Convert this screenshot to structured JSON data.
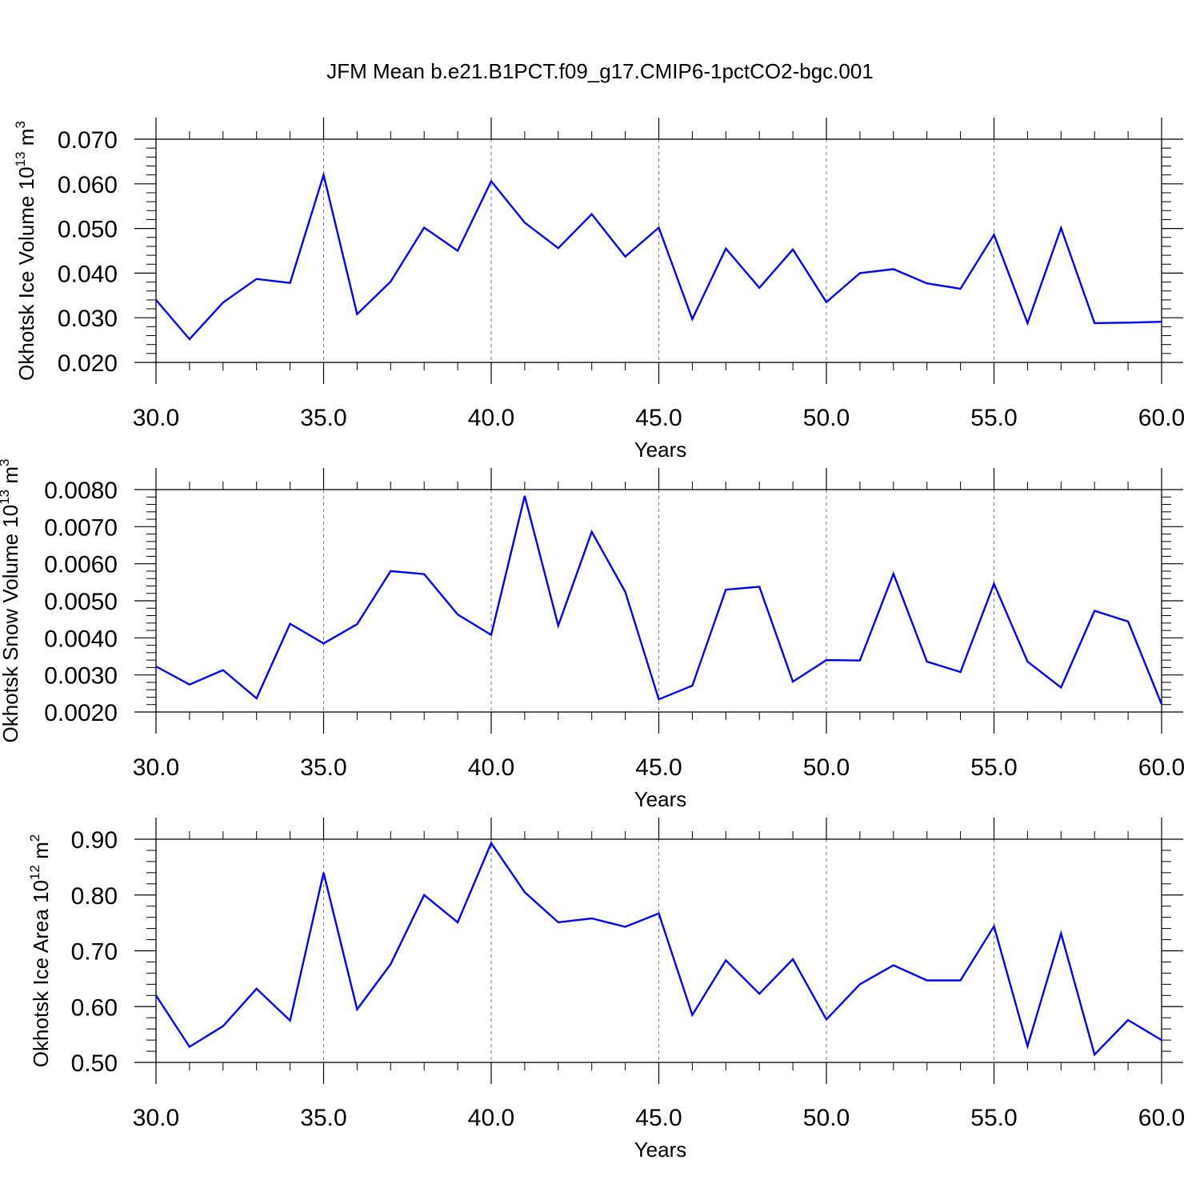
{
  "title": "JFM Mean b.e21.B1PCT.f09_g17.CMIP6-1pctCO2-bgc.001",
  "line_color": "#0000ff",
  "chart_data": [
    {
      "type": "line",
      "ylabel": "Okhotsk Ice Volume 10",
      "ylabel_sup": "13",
      "ylabel_unit": "m",
      "ylabel_unit_sup": "3",
      "xlabel": "Years",
      "xlim": [
        30,
        60
      ],
      "ylim": [
        0.02,
        0.07
      ],
      "xticks": [
        "30.0",
        "35.0",
        "40.0",
        "45.0",
        "50.0",
        "55.0",
        "60.0"
      ],
      "yticks": [
        "0.020",
        "0.030",
        "0.040",
        "0.050",
        "0.060",
        "0.070"
      ],
      "x": [
        30,
        31,
        32,
        33,
        34,
        35,
        36,
        37,
        38,
        39,
        40,
        41,
        42,
        43,
        44,
        45,
        46,
        47,
        48,
        49,
        50,
        51,
        52,
        53,
        54,
        55,
        56,
        57,
        58,
        59,
        60
      ],
      "series": [
        {
          "values": [
            0.034,
            0.0252,
            0.0334,
            0.0387,
            0.0378,
            0.062,
            0.0308,
            0.0381,
            0.0502,
            0.045,
            0.0606,
            0.0513,
            0.0456,
            0.0532,
            0.0437,
            0.0502,
            0.0297,
            0.0455,
            0.0367,
            0.0453,
            0.0335,
            0.04,
            0.0409,
            0.0377,
            0.0365,
            0.0486,
            0.0288,
            0.0501,
            0.0288,
            0.0289,
            0.0291
          ]
        }
      ]
    },
    {
      "type": "line",
      "ylabel": "Okhotsk Snow Volume 10",
      "ylabel_sup": "13",
      "ylabel_unit": "m",
      "ylabel_unit_sup": "3",
      "xlabel": "Years",
      "xlim": [
        30,
        60
      ],
      "ylim": [
        0.002,
        0.008
      ],
      "xticks": [
        "30.0",
        "35.0",
        "40.0",
        "45.0",
        "50.0",
        "55.0",
        "60.0"
      ],
      "yticks": [
        "0.0020",
        "0.0030",
        "0.0040",
        "0.0050",
        "0.0060",
        "0.0070",
        "0.0080"
      ],
      "x": [
        30,
        31,
        32,
        33,
        34,
        35,
        36,
        37,
        38,
        39,
        40,
        41,
        42,
        43,
        44,
        45,
        46,
        47,
        48,
        49,
        50,
        51,
        52,
        53,
        54,
        55,
        56,
        57,
        58,
        59,
        60
      ],
      "series": [
        {
          "values": [
            0.00323,
            0.00274,
            0.00313,
            0.00237,
            0.00438,
            0.00385,
            0.00437,
            0.0058,
            0.00572,
            0.00463,
            0.00408,
            0.00783,
            0.00433,
            0.00686,
            0.00524,
            0.00234,
            0.00271,
            0.0053,
            0.00538,
            0.00282,
            0.0034,
            0.00339,
            0.00573,
            0.00336,
            0.00308,
            0.00546,
            0.00336,
            0.00266,
            0.00473,
            0.00444,
            0.00221
          ]
        }
      ]
    },
    {
      "type": "line",
      "ylabel": "Okhotsk Ice Area 10",
      "ylabel_sup": "12",
      "ylabel_unit": "m",
      "ylabel_unit_sup": "2",
      "xlabel": "Years",
      "xlim": [
        30,
        60
      ],
      "ylim": [
        0.5,
        0.9
      ],
      "xticks": [
        "30.0",
        "35.0",
        "40.0",
        "45.0",
        "50.0",
        "55.0",
        "60.0"
      ],
      "yticks": [
        "0.50",
        "0.60",
        "0.70",
        "0.80",
        "0.90"
      ],
      "x": [
        30,
        31,
        32,
        33,
        34,
        35,
        36,
        37,
        38,
        39,
        40,
        41,
        42,
        43,
        44,
        45,
        46,
        47,
        48,
        49,
        50,
        51,
        52,
        53,
        54,
        55,
        56,
        57,
        58,
        59,
        60
      ],
      "series": [
        {
          "values": [
            0.62,
            0.528,
            0.565,
            0.632,
            0.575,
            0.84,
            0.595,
            0.676,
            0.8,
            0.751,
            0.893,
            0.805,
            0.751,
            0.758,
            0.743,
            0.767,
            0.585,
            0.683,
            0.623,
            0.685,
            0.577,
            0.64,
            0.674,
            0.647,
            0.647,
            0.744,
            0.529,
            0.731,
            0.514,
            0.576,
            0.54
          ]
        }
      ]
    }
  ]
}
